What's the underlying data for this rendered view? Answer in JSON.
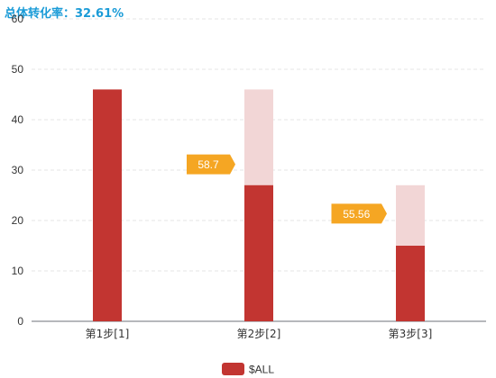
{
  "title": "总体转化率：32.61%",
  "chart_data": {
    "type": "bar",
    "categories": [
      "第1步[1]",
      "第2步[2]",
      "第3步[3]"
    ],
    "series": [
      {
        "name": "$ALL",
        "values": [
          46,
          27,
          15
        ]
      }
    ],
    "previous_step_values": [
      null,
      46,
      27
    ],
    "conversion_labels": [
      "58.7",
      "55.56"
    ],
    "ylim": [
      0,
      60
    ],
    "yticks": [
      0,
      10,
      20,
      30,
      40,
      50,
      60
    ],
    "grid": true,
    "legend_position": "bottom-center",
    "colors": {
      "bar": "#c23531",
      "ghost": "#f2d6d6",
      "badge": "#f5a623",
      "title": "#1a9bd7"
    }
  }
}
